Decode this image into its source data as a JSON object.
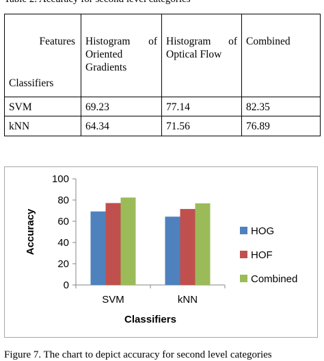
{
  "table_caption": "Table 2. Accuracy for second level categories",
  "table": {
    "corner_top": "Features",
    "corner_bottom": "Classifiers",
    "columns": [
      "Histogram of Oriented Gradients",
      "Histogram of Optical Flow",
      "Combined"
    ],
    "rows": [
      {
        "label": "SVM",
        "values": [
          "69.23",
          "77.14",
          "82.35"
        ]
      },
      {
        "label": "kNN",
        "values": [
          "64.34",
          "71.56",
          "76.89"
        ]
      }
    ]
  },
  "chart_data": {
    "type": "bar",
    "categories": [
      "SVM",
      "kNN"
    ],
    "series": [
      {
        "name": "HOG",
        "values": [
          69.23,
          64.34
        ],
        "color": "#4f81bd"
      },
      {
        "name": "HOF",
        "values": [
          77.14,
          71.56
        ],
        "color": "#c0504d"
      },
      {
        "name": "Combined",
        "values": [
          82.35,
          76.89
        ],
        "color": "#9bbb59"
      }
    ],
    "xlabel": "Classifiers",
    "ylabel": "Accuracy",
    "ylim": [
      0,
      100
    ],
    "yticks": [
      0,
      20,
      40,
      60,
      80,
      100
    ],
    "legend_position": "right",
    "grid": false
  },
  "figure_caption": "Figure 7. The chart to depict accuracy for second level categories"
}
